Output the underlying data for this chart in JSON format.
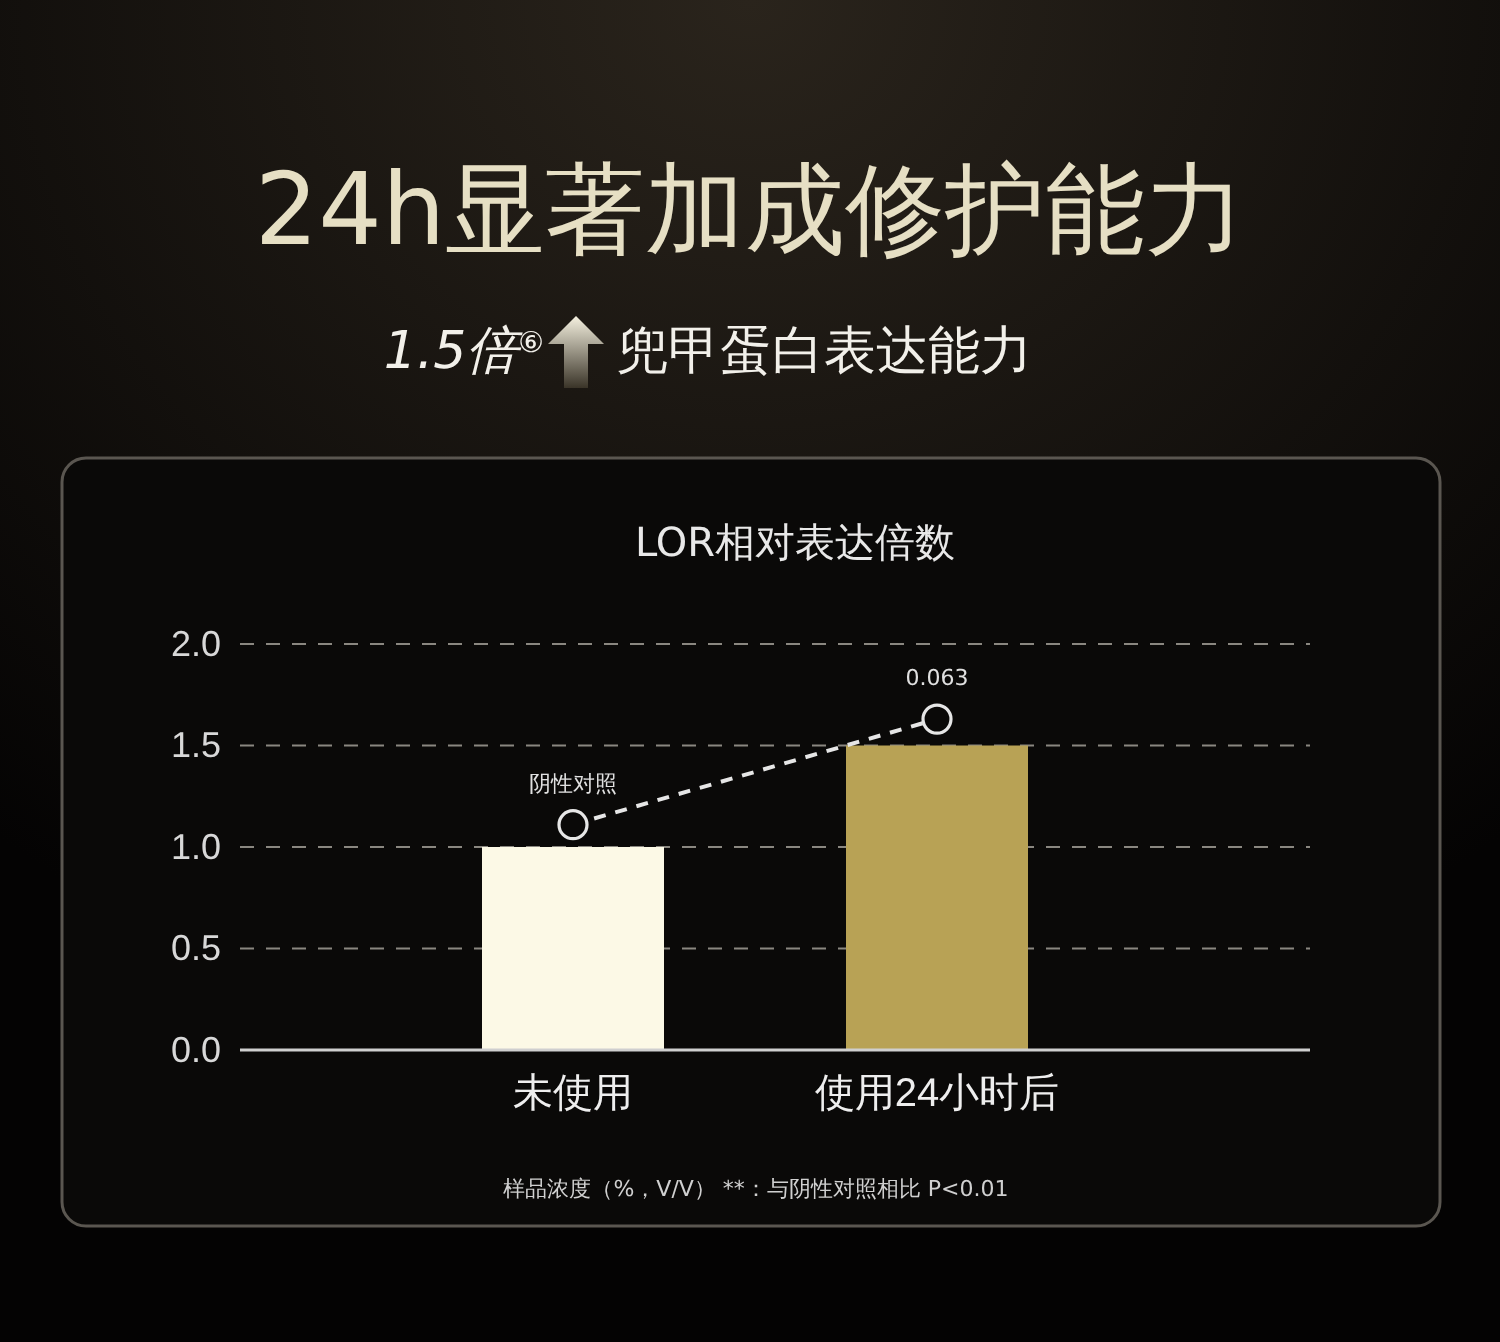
{
  "chart_data": {
    "type": "bar",
    "title": "24h显著加成修护能力",
    "subtitle": "1.5倍$^{⑥}$ 兜甲蛋白表达能力",
    "ylabel": "LOR相对表达倍数",
    "categories": [
      "未使用",
      "使用24小时后"
    ],
    "series": [
      {
        "colors": [
          "#fcf9e6",
          "#b8a255"
        ],
        "values": [
          1.0,
          1.5
        ]
      },
      {
        "type": "line",
        "color": "#e6e6e6",
        "marker": "circle",
        "line_style": "dashed",
        "values": [
          1.11,
          1.63
        ]
      }
    ],
    "ylim": [
      0,
      2
    ],
    "yticks": [
      {
        "value": 0,
        "label": "0.0"
      },
      {
        "value": 0.5,
        "label": "0.5"
      },
      {
        "value": 1,
        "label": "1.0"
      },
      {
        "value": 1.5,
        "label": "1.5"
      },
      {
        "value": 2,
        "label": "2.0"
      }
    ],
    "grid": "y",
    "annotations": [
      {
        "text": "阴性对照",
        "x": "未使用",
        "y": 1.11
      },
      {
        "text": "0.063",
        "x": "使用24小时后",
        "y": 1.63
      },
      "样品浓度（%，V/V） **：与阴性对照相比 P<0.01"
    ]
  }
}
